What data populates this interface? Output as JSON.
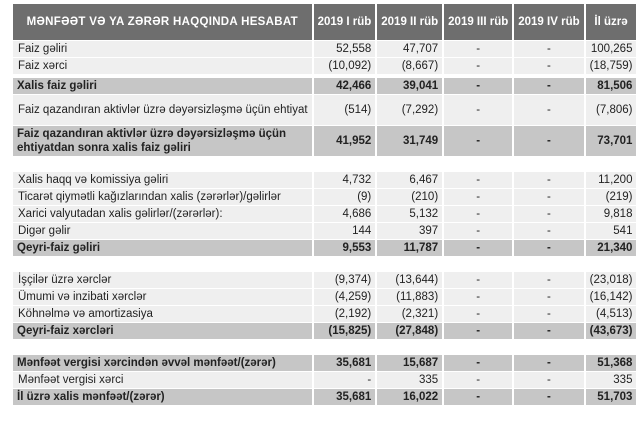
{
  "title": "MƏNFƏƏT VƏ YA ZƏRƏR HAQQINDA HESABAT",
  "columns": [
    "2019 I rüb",
    "2019 II rüb",
    "2019 III rüb",
    "2019 IV rüb",
    "İl üzrə"
  ],
  "rows": [
    {
      "type": "light",
      "label": "Faiz gəliri",
      "values": [
        "52,558",
        "47,707",
        "-",
        "-",
        "100,265"
      ]
    },
    {
      "type": "light",
      "label": "Faiz xərci",
      "values": [
        "(10,092)",
        "(8,667)",
        "-",
        "-",
        "(18,759)"
      ]
    },
    {
      "type": "gap"
    },
    {
      "type": "bold",
      "label": "Xalis faiz gəliri",
      "values": [
        "42,466",
        "39,041",
        "-",
        "-",
        "81,506"
      ]
    },
    {
      "type": "light tall",
      "label": "Faiz qazandıran aktivlər üzrə dəyərsizləşmə üçün ehtiyat",
      "values": [
        "(514)",
        "(7,292)",
        "-",
        "-",
        "(7,806)"
      ]
    },
    {
      "type": "bold tall",
      "label": "Faiz qazandıran aktivlər üzrə dəyərsizləşmə üçün ehtiyatdan sonra xalis faiz gəliri",
      "values": [
        "41,952",
        "31,749",
        "-",
        "-",
        "73,701"
      ]
    },
    {
      "type": "gap"
    },
    {
      "type": "light",
      "label": "Xalis haqq və komissiya gəliri",
      "values": [
        "4,732",
        "6,467",
        "-",
        "-",
        "11,200"
      ]
    },
    {
      "type": "light",
      "label": "Ticarət qiymətli kağızlarından xalis (zərərlər)/gəlirlər",
      "values": [
        "(9)",
        "(210)",
        "-",
        "-",
        "(219)"
      ]
    },
    {
      "type": "light",
      "label": "Xarici valyutadan xalis gəlirlər/(zərərlər):",
      "values": [
        "4,686",
        "5,132",
        "-",
        "-",
        "9,818"
      ]
    },
    {
      "type": "light",
      "label": "Digər gəlir",
      "values": [
        "144",
        "397",
        "-",
        "-",
        "541"
      ]
    },
    {
      "type": "bold",
      "label": "Qeyri-faiz gəliri",
      "values": [
        "9,553",
        "11,787",
        "-",
        "-",
        "21,340"
      ]
    },
    {
      "type": "gap"
    },
    {
      "type": "light",
      "label": "İşçilər üzrə xərclər",
      "values": [
        "(9,374)",
        "(13,644)",
        "-",
        "-",
        "(23,018)"
      ]
    },
    {
      "type": "light",
      "label": "Ümumi və inzibati xərclər",
      "values": [
        "(4,259)",
        "(11,883)",
        "-",
        "-",
        "(16,142)"
      ]
    },
    {
      "type": "light",
      "label": "Köhnəlmə və amortizasiya",
      "values": [
        "(2,192)",
        "(2,321)",
        "-",
        "-",
        "(4,513)"
      ]
    },
    {
      "type": "bold",
      "label": "Qeyri-faiz xərcləri",
      "values": [
        "(15,825)",
        "(27,848)",
        "-",
        "-",
        "(43,673)"
      ]
    },
    {
      "type": "gap"
    },
    {
      "type": "bold",
      "label": "Mənfəət vergisi xərcindən əvvəl mənfəət/(zərər)",
      "values": [
        "35,681",
        "15,687",
        "-",
        "-",
        "51,368"
      ]
    },
    {
      "type": "light",
      "label": "Mənfəət vergisi xərci",
      "values": [
        "-",
        "335",
        "-",
        "-",
        "335"
      ]
    },
    {
      "type": "bold",
      "label": "İl üzrə xalis mənfəət/(zərər)",
      "values": [
        "35,681",
        "16,022",
        "-",
        "-",
        "51,703"
      ]
    }
  ]
}
